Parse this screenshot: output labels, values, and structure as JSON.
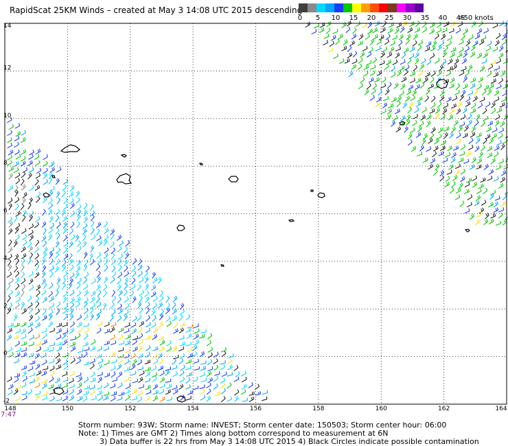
{
  "title": "RapidScat 25KM Winds – created at May  3 14:08 UTC 2015 descending",
  "color_scale": {
    "labels": [
      "0",
      "5",
      "10",
      "15",
      "20",
      "25",
      "30",
      "35",
      "40",
      "45",
      ">50 knots"
    ],
    "colors": [
      "#3f3f3f",
      "#8a8a8a",
      "#00d8ff",
      "#00a8ff",
      "#1a3cff",
      "#00c800",
      "#ffff00",
      "#ffa000",
      "#ff5000",
      "#ff0000",
      "#7a3a1e",
      "#ff00ff",
      "#9a00d0",
      "#6000a0"
    ]
  },
  "map": {
    "lon_labels": [
      "148",
      "150",
      "152",
      "154",
      "156",
      "158",
      "160",
      "162",
      "164"
    ],
    "lat_labels": [
      "14",
      "12",
      "10",
      "8",
      "6",
      "4",
      "2",
      "0",
      "-2"
    ],
    "lon_range": [
      148,
      164
    ],
    "lat_range": [
      -2,
      14
    ]
  },
  "timestamp": "7:47",
  "footer": {
    "line1": "Storm number: 93W;   Storm name: INVEST;   Storm center date: 150503;   Storm center hour: 06:00",
    "line2": "Note: 1) Times are GMT  2) Times along bottom correspond to measurement at 6N",
    "line3": "3) Data buffer is 22 hrs from May  3 14:08 UTC 2015   4) Black Circles indicate possible contamination"
  }
}
